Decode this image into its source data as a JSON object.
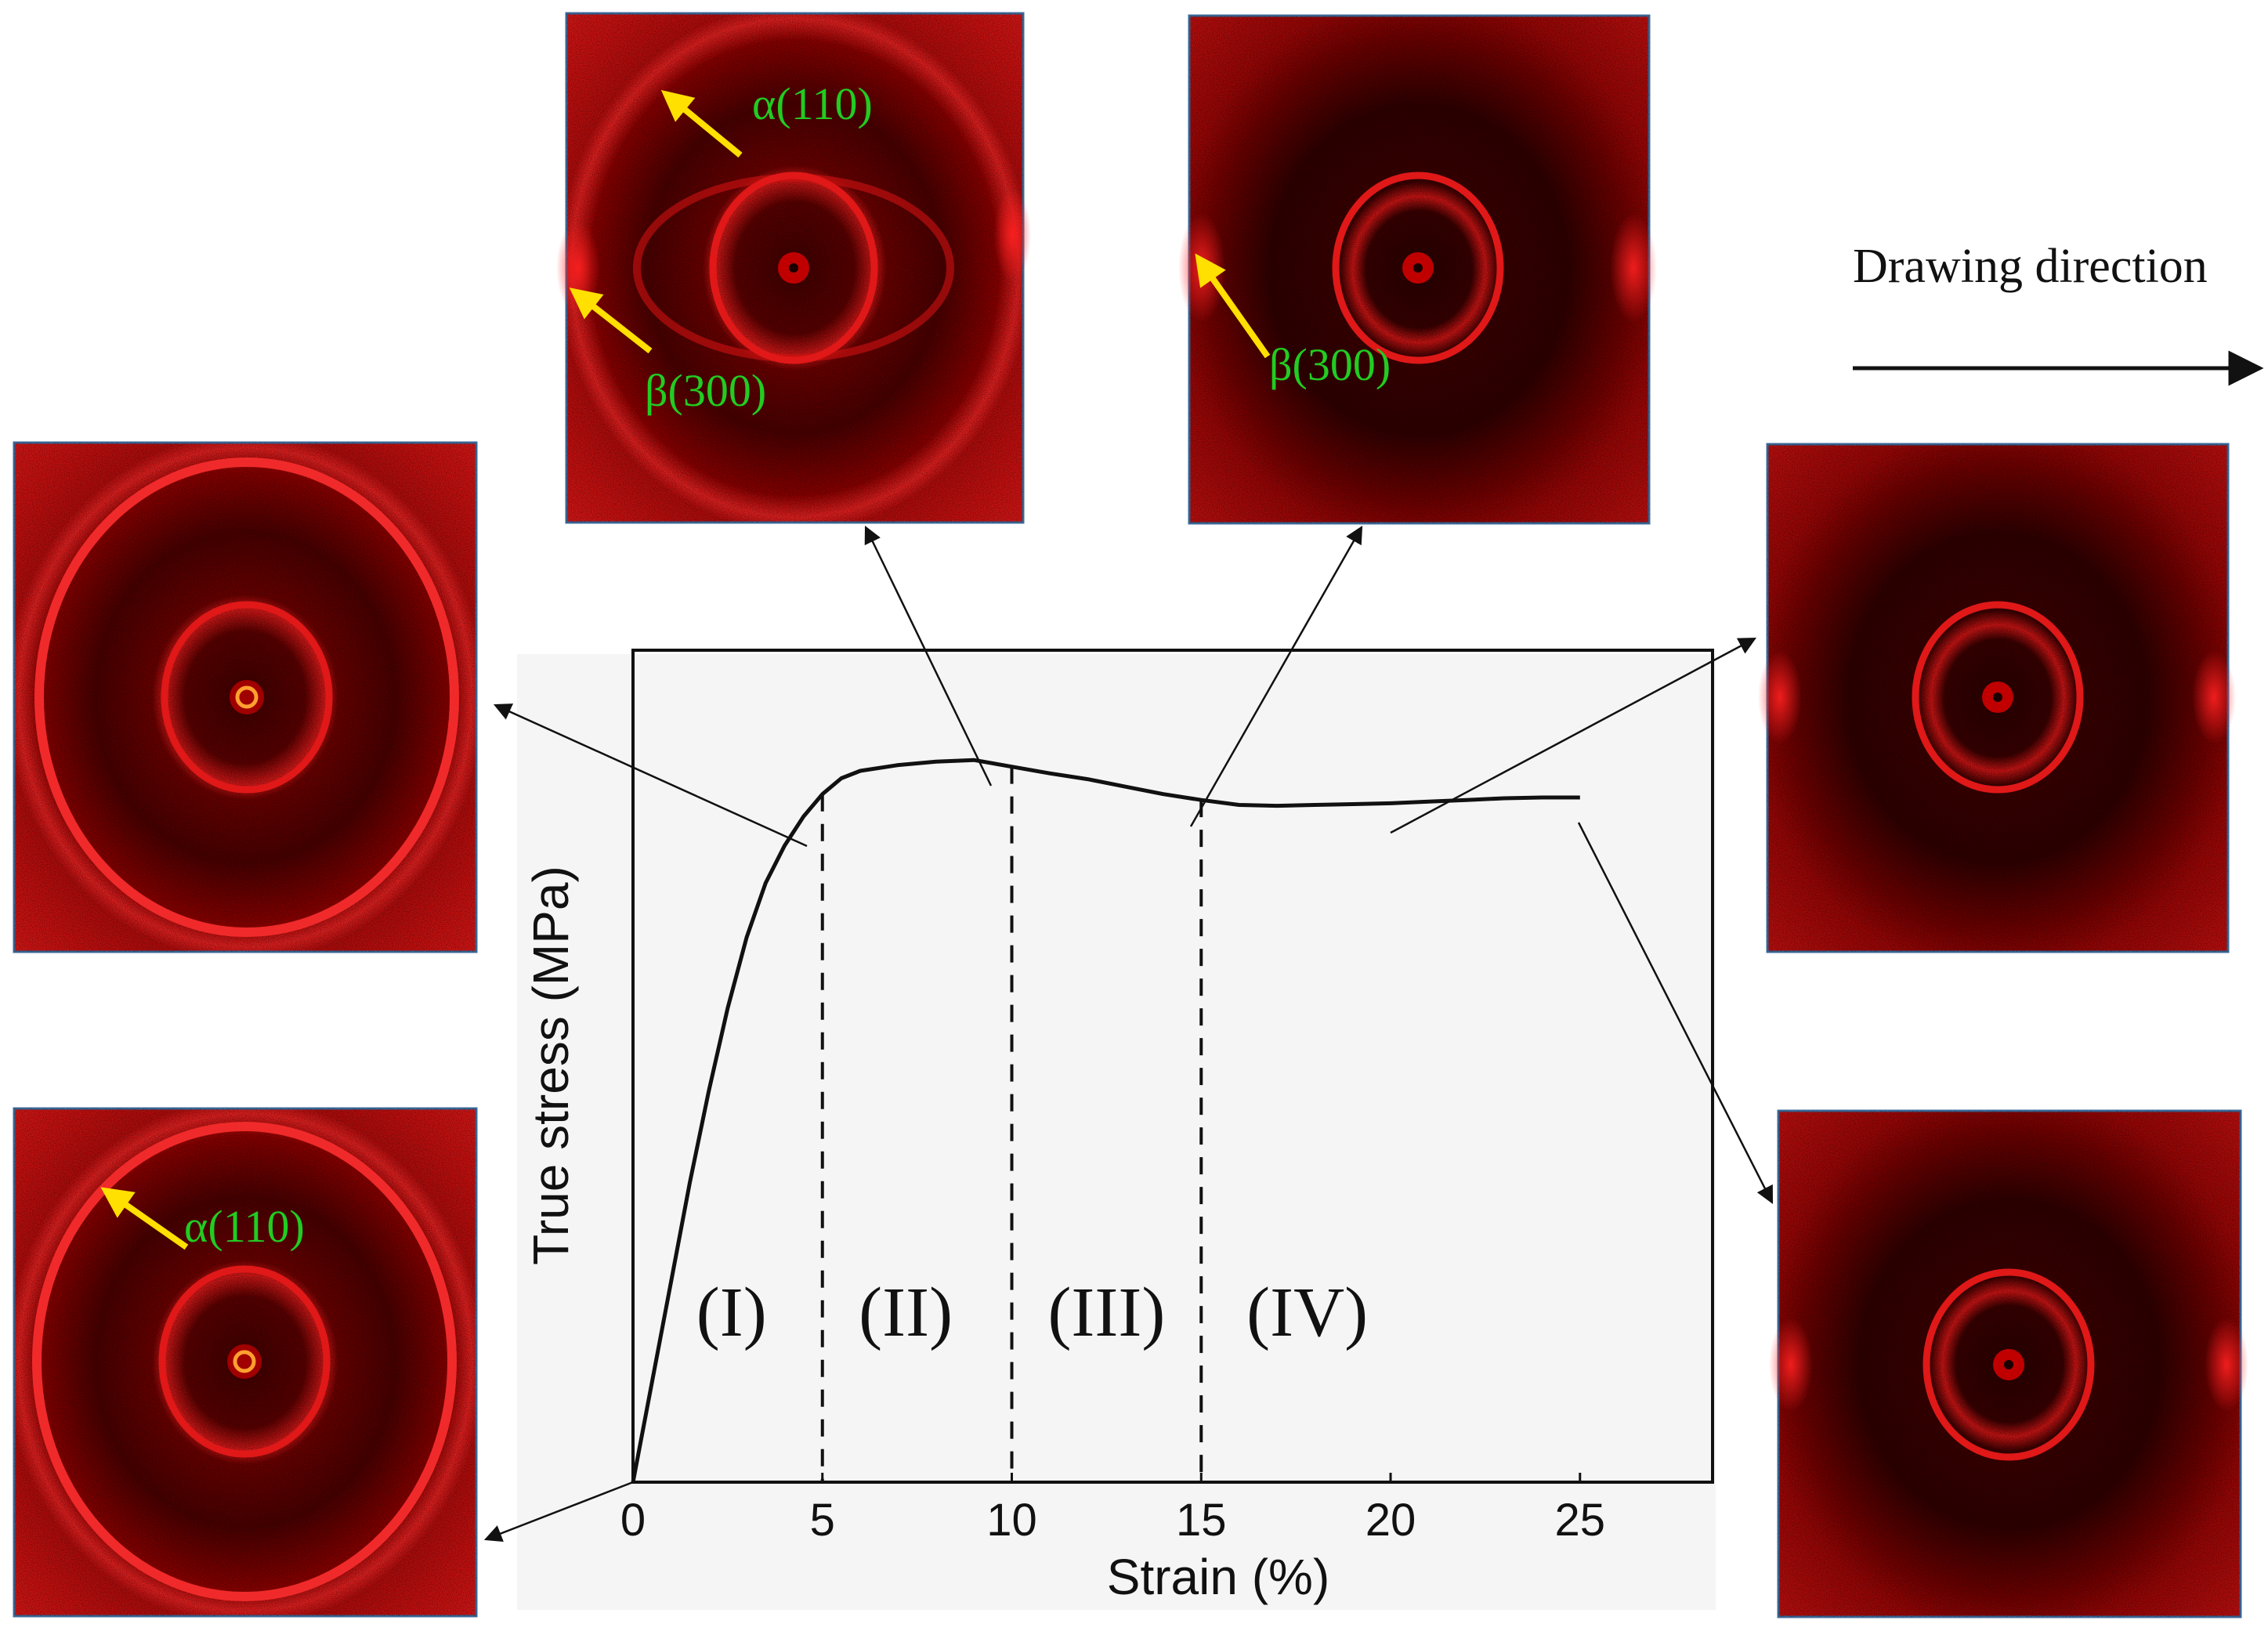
{
  "chart_data": {
    "type": "line",
    "xlabel": "Strain (%)",
    "ylabel": "True stress (MPa)",
    "xlim": [
      0,
      28.5
    ],
    "ylim": [
      0,
      1.0
    ],
    "x_ticks": [
      0,
      5,
      10,
      15,
      20,
      25
    ],
    "y_ticks": [],
    "grid": false,
    "series": [
      {
        "name": "True stress-strain curve",
        "x": [
          0,
          0.5,
          1,
          1.5,
          2,
          2.5,
          3,
          3.5,
          4,
          4.5,
          5,
          5.5,
          6,
          7,
          8,
          9,
          10,
          11,
          12,
          13,
          14,
          15,
          16,
          17,
          18,
          19,
          20,
          21,
          22,
          23,
          24,
          25
        ],
        "y": [
          0,
          0.12,
          0.24,
          0.36,
          0.47,
          0.57,
          0.655,
          0.72,
          0.765,
          0.8,
          0.827,
          0.846,
          0.855,
          0.862,
          0.866,
          0.868,
          0.86,
          0.852,
          0.845,
          0.836,
          0.827,
          0.82,
          0.814,
          0.813,
          0.814,
          0.815,
          0.816,
          0.818,
          0.82,
          0.822,
          0.823,
          0.823
        ]
      }
    ],
    "dividers": [
      5,
      10,
      15
    ],
    "regions": [
      {
        "label": "(I)",
        "x": 2.6
      },
      {
        "label": "(II)",
        "x": 7.2
      },
      {
        "label": "(III)",
        "x": 12.5
      },
      {
        "label": "(IV)",
        "x": 17.8
      }
    ],
    "annotations": {
      "drawing_direction": "Drawing direction",
      "peaks": {
        "alpha": "α(110)",
        "beta": "β(300)"
      }
    }
  },
  "colors": {
    "pattern_background": "#a00000",
    "pattern_ring": "#ff1e1e",
    "pattern_dark": "#1c0000",
    "arrow_yellow": "#ffe000",
    "label_green": "#22cc22",
    "plot_background": "#f5f5f5"
  }
}
